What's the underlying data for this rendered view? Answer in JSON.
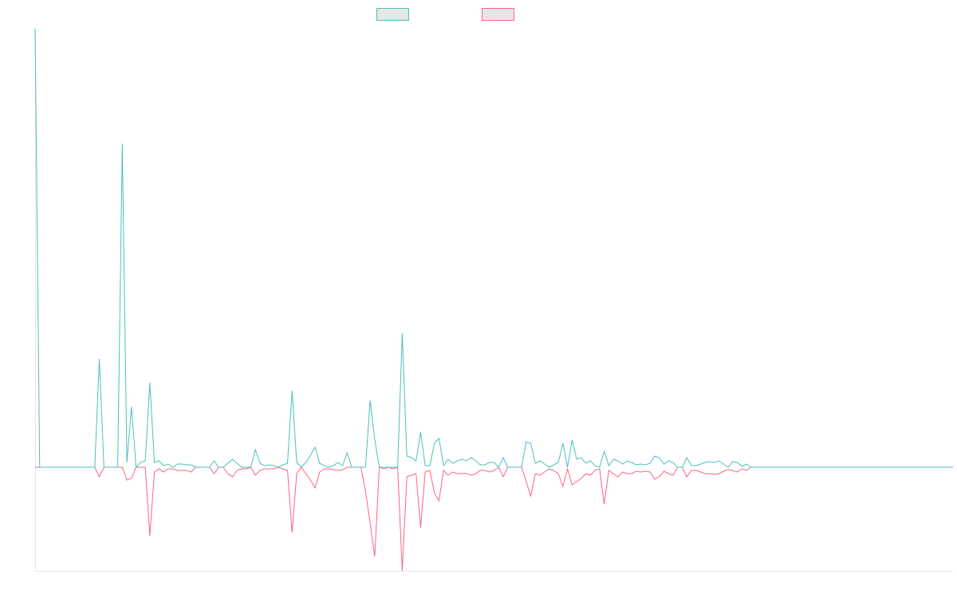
{
  "chart_data": {
    "type": "line",
    "categories": [
      null,
      null,
      null,
      null,
      null,
      null,
      null,
      null,
      null,
      null,
      null,
      null,
      null,
      null,
      null,
      null,
      null,
      null,
      null,
      null,
      null,
      null,
      null,
      null,
      null,
      null,
      null,
      null,
      null,
      null,
      null,
      null,
      null,
      null,
      null,
      null,
      null,
      null,
      null,
      null,
      null,
      null,
      null,
      null,
      null,
      null,
      null,
      null,
      null,
      null,
      null,
      null,
      null,
      null,
      null,
      null,
      null,
      null,
      null,
      null,
      null,
      null,
      null,
      null,
      null,
      null,
      null,
      null,
      null,
      null,
      null,
      null,
      null,
      null,
      null,
      null,
      null,
      null,
      null,
      null,
      null,
      null,
      null,
      null,
      null,
      null,
      null,
      null,
      null,
      null,
      null,
      null,
      null,
      null,
      null,
      null,
      null,
      null,
      null,
      null,
      null,
      null,
      null,
      null,
      null,
      null,
      null,
      null,
      null,
      null,
      null,
      null,
      null,
      null,
      null,
      null,
      null,
      null,
      null,
      null,
      null,
      null,
      null,
      null,
      null,
      null,
      null,
      null,
      null,
      null,
      null,
      null,
      null,
      null,
      null,
      null,
      null,
      null,
      null,
      null,
      null,
      null,
      null,
      null,
      null,
      null,
      null,
      null,
      null,
      null,
      null,
      null,
      null,
      null,
      null,
      null,
      null,
      null,
      null,
      null,
      null,
      null,
      null,
      null,
      null,
      null,
      null,
      null,
      null,
      null,
      null,
      null,
      null,
      null,
      null,
      null,
      null,
      null,
      null,
      null,
      null,
      null,
      null,
      null,
      null,
      null,
      null,
      null,
      null,
      null,
      null,
      null,
      null,
      null,
      null,
      null,
      null,
      null,
      null,
      null,
      null
    ],
    "series": [
      {
        "color": "#ff6384",
        "values": [
          0,
          0,
          0,
          0,
          0,
          0,
          0,
          0,
          0,
          0,
          0,
          0,
          0,
          0,
          -12,
          0,
          0,
          0,
          0,
          0,
          -16,
          -14,
          0,
          0,
          0,
          -86,
          -6,
          -2,
          -6,
          -2,
          -2,
          -4,
          -4,
          -4,
          -6,
          0,
          0,
          0,
          0,
          -8,
          0,
          0,
          -8,
          -12,
          -4,
          -2,
          -2,
          0,
          -10,
          -4,
          -2,
          -2,
          -2,
          0,
          -2,
          -4,
          -82,
          -8,
          0,
          -8,
          -16,
          -26,
          -6,
          -2,
          -2,
          -3,
          -4,
          -3,
          0,
          0,
          0,
          0,
          -30,
          -70,
          -112,
          0,
          -2,
          0,
          -2,
          0,
          -130,
          -12,
          -10,
          -8,
          -76,
          -6,
          -4,
          -32,
          -42,
          -4,
          -10,
          -6,
          -8,
          -8,
          -8,
          -10,
          -8,
          -4,
          -4,
          -6,
          -4,
          0,
          -12,
          0,
          0,
          0,
          0,
          -18,
          -36,
          -8,
          -10,
          -6,
          -2,
          -4,
          -8,
          -24,
          -2,
          -22,
          -18,
          -14,
          -8,
          -10,
          -4,
          -2,
          -46,
          -4,
          -8,
          -12,
          -6,
          -8,
          -8,
          -5,
          -6,
          -5,
          -6,
          -15,
          -12,
          -5,
          -8,
          -10,
          0,
          0,
          -12,
          -4,
          -4,
          -6,
          -8,
          -8,
          -9,
          -8,
          -5,
          -3,
          -4,
          -6,
          -2,
          -4,
          0,
          null,
          null,
          null,
          null,
          null,
          null,
          null,
          null,
          null,
          null,
          null,
          null,
          null,
          null,
          null,
          null,
          null,
          null,
          null,
          null,
          null,
          null,
          null,
          null,
          null,
          null,
          null,
          null,
          null,
          null,
          null,
          null,
          null,
          null,
          null,
          null,
          null,
          null,
          null,
          null,
          null,
          null,
          null,
          null
        ]
      },
      {
        "color": "#4bc0c0",
        "values": [
          550,
          0,
          0,
          0,
          0,
          0,
          0,
          0,
          0,
          0,
          0,
          0,
          0,
          0,
          136,
          0,
          0,
          0,
          0,
          406,
          6,
          76,
          0,
          6,
          8,
          106,
          6,
          8,
          2,
          4,
          0,
          4,
          4,
          3,
          3,
          0,
          0,
          0,
          0,
          8,
          0,
          0,
          5,
          10,
          5,
          0,
          0,
          0,
          22,
          5,
          2,
          3,
          2,
          0,
          3,
          5,
          96,
          6,
          0,
          6,
          15,
          25,
          5,
          2,
          0,
          2,
          6,
          2,
          18,
          0,
          0,
          0,
          0,
          84,
          35,
          0,
          0,
          0,
          0,
          0,
          168,
          14,
          12,
          8,
          44,
          2,
          2,
          30,
          36,
          2,
          10,
          5,
          8,
          10,
          8,
          12,
          8,
          3,
          3,
          6,
          6,
          0,
          12,
          0,
          0,
          0,
          0,
          32,
          30,
          5,
          8,
          4,
          0,
          3,
          6,
          30,
          0,
          34,
          10,
          12,
          5,
          8,
          2,
          0,
          20,
          2,
          10,
          8,
          4,
          8,
          6,
          3,
          4,
          3,
          5,
          14,
          12,
          4,
          8,
          6,
          0,
          0,
          12,
          2,
          2,
          4,
          6,
          7,
          6,
          8,
          4,
          0,
          7,
          6,
          1,
          4,
          0,
          0,
          0,
          0,
          0,
          0,
          0,
          0,
          0,
          0,
          0,
          0,
          0,
          0,
          0,
          0,
          0,
          0,
          0,
          0,
          0,
          0,
          0,
          0,
          0,
          0,
          0,
          0,
          0,
          0,
          0,
          0,
          0,
          0,
          0,
          0,
          0,
          0,
          0,
          0,
          0,
          0,
          0,
          0,
          0
        ]
      }
    ],
    "ylim": [
      -130,
      550
    ]
  }
}
